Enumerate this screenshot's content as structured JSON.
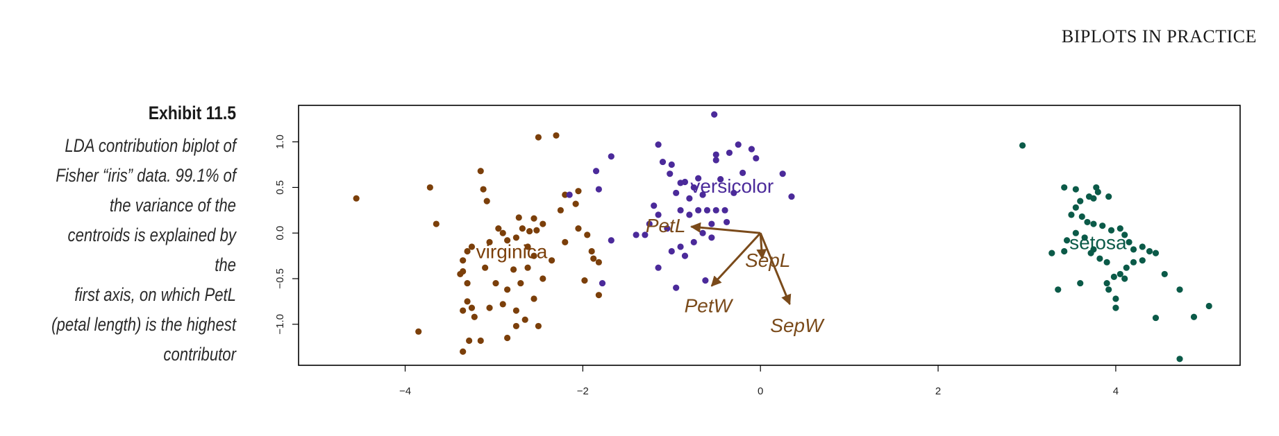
{
  "header": {
    "running_head": "BIPLOTS IN PRACTICE"
  },
  "caption": {
    "title": "Exhibit 11.5",
    "text": "LDA contribution biplot of\nFisher “iris” data. 99.1% of\nthe variance of the\ncentroids is explained by the\nfirst axis, on which PetL\n(petal length) is the highest\ncontributor"
  },
  "chart_data": {
    "type": "scatter",
    "xlim": [
      -5.2,
      5.4
    ],
    "ylim": [
      -1.45,
      1.4
    ],
    "x_ticks": [
      -4,
      -2,
      0,
      2,
      4
    ],
    "y_ticks": [
      -1.0,
      -0.5,
      0.0,
      0.5,
      1.0
    ],
    "x_tick_labels": [
      "−4",
      "−2",
      "0",
      "2",
      "4"
    ],
    "y_tick_labels": [
      "−1.0",
      "−0.5",
      "0.0",
      "0.5",
      "1.0"
    ],
    "colors": {
      "virginica": "#7b3f0a",
      "versicolor": "#4b2a9a",
      "setosa": "#0b5a48",
      "arrows": "#7a4a1a"
    },
    "series": [
      {
        "name": "virginica",
        "points": [
          [
            -4.55,
            0.38
          ],
          [
            -3.72,
            0.5
          ],
          [
            -3.65,
            0.1
          ],
          [
            -3.15,
            0.68
          ],
          [
            -3.12,
            0.48
          ],
          [
            -3.08,
            0.35
          ],
          [
            -2.5,
            1.05
          ],
          [
            -2.3,
            1.07
          ],
          [
            -2.2,
            0.42
          ],
          [
            -2.08,
            0.32
          ],
          [
            -2.05,
            0.05
          ],
          [
            -2.25,
            0.25
          ],
          [
            -1.95,
            -0.02
          ],
          [
            -1.9,
            -0.2
          ],
          [
            -1.88,
            -0.28
          ],
          [
            -1.82,
            -0.32
          ],
          [
            -1.82,
            -0.68
          ],
          [
            -1.98,
            -0.52
          ],
          [
            -2.05,
            0.46
          ],
          [
            -2.55,
            0.16
          ],
          [
            -2.52,
            0.03
          ],
          [
            -2.45,
            0.1
          ],
          [
            -2.6,
            0.02
          ],
          [
            -2.72,
            0.17
          ],
          [
            -2.68,
            0.05
          ],
          [
            -2.75,
            -0.05
          ],
          [
            -2.85,
            -0.08
          ],
          [
            -2.9,
            -0.0
          ],
          [
            -2.95,
            0.05
          ],
          [
            -3.05,
            -0.1
          ],
          [
            -3.25,
            -0.15
          ],
          [
            -3.3,
            -0.2
          ],
          [
            -3.35,
            -0.3
          ],
          [
            -3.38,
            -0.45
          ],
          [
            -3.35,
            -0.42
          ],
          [
            -3.3,
            -0.55
          ],
          [
            -3.25,
            -0.82
          ],
          [
            -3.22,
            -0.92
          ],
          [
            -3.3,
            -0.75
          ],
          [
            -3.35,
            -0.85
          ],
          [
            -3.28,
            -1.18
          ],
          [
            -3.35,
            -1.3
          ],
          [
            -3.15,
            -1.18
          ],
          [
            -2.85,
            -1.15
          ],
          [
            -2.75,
            -1.02
          ],
          [
            -2.65,
            -0.95
          ],
          [
            -2.5,
            -1.02
          ],
          [
            -2.55,
            -0.72
          ],
          [
            -2.7,
            -0.55
          ],
          [
            -2.62,
            -0.38
          ],
          [
            -2.55,
            -0.25
          ],
          [
            -2.78,
            -0.4
          ],
          [
            -2.85,
            -0.62
          ],
          [
            -2.9,
            -0.78
          ],
          [
            -3.05,
            -0.82
          ],
          [
            -2.98,
            -0.55
          ],
          [
            -3.1,
            -0.38
          ],
          [
            -2.75,
            -0.85
          ],
          [
            -3.85,
            -1.08
          ],
          [
            -2.45,
            -0.5
          ],
          [
            -2.35,
            -0.3
          ],
          [
            -2.2,
            -0.1
          ],
          [
            -2.62,
            -0.15
          ]
        ]
      },
      {
        "name": "versicolor",
        "points": [
          [
            -0.52,
            1.3
          ],
          [
            -1.15,
            0.97
          ],
          [
            -1.1,
            0.78
          ],
          [
            -1.0,
            0.75
          ],
          [
            -1.02,
            0.65
          ],
          [
            -0.5,
            0.86
          ],
          [
            -0.5,
            0.8
          ],
          [
            -0.35,
            0.88
          ],
          [
            -0.25,
            0.97
          ],
          [
            -0.1,
            0.92
          ],
          [
            -0.05,
            0.82
          ],
          [
            0.25,
            0.65
          ],
          [
            0.35,
            0.4
          ],
          [
            -0.9,
            0.55
          ],
          [
            -0.75,
            0.5
          ],
          [
            -0.65,
            0.42
          ],
          [
            -0.8,
            0.38
          ],
          [
            -0.95,
            0.44
          ],
          [
            -1.2,
            0.3
          ],
          [
            -1.15,
            0.2
          ],
          [
            -1.25,
            0.1
          ],
          [
            -0.9,
            0.25
          ],
          [
            -0.8,
            0.2
          ],
          [
            -0.7,
            0.25
          ],
          [
            -0.6,
            0.25
          ],
          [
            -0.5,
            0.25
          ],
          [
            -0.4,
            0.25
          ],
          [
            -0.38,
            0.12
          ],
          [
            -0.55,
            0.1
          ],
          [
            -0.65,
            0.0
          ],
          [
            -0.55,
            -0.05
          ],
          [
            -0.75,
            -0.1
          ],
          [
            -0.9,
            -0.15
          ],
          [
            -1.0,
            -0.2
          ],
          [
            -0.85,
            -0.25
          ],
          [
            -1.3,
            -0.02
          ],
          [
            -1.4,
            -0.02
          ],
          [
            -1.15,
            -0.38
          ],
          [
            -0.95,
            -0.6
          ],
          [
            -0.62,
            -0.52
          ],
          [
            -1.78,
            -0.55
          ],
          [
            -1.68,
            -0.08
          ],
          [
            -1.82,
            0.48
          ],
          [
            -1.85,
            0.68
          ],
          [
            -2.15,
            0.42
          ],
          [
            -1.68,
            0.84
          ],
          [
            -0.85,
            0.56
          ],
          [
            -0.3,
            0.44
          ],
          [
            -0.2,
            0.66
          ],
          [
            -0.45,
            0.59
          ],
          [
            -1.05,
            0.05
          ],
          [
            -0.7,
            0.6
          ]
        ]
      },
      {
        "name": "setosa",
        "points": [
          [
            2.95,
            0.96
          ],
          [
            3.42,
            0.5
          ],
          [
            3.55,
            0.48
          ],
          [
            3.78,
            0.5
          ],
          [
            3.8,
            0.45
          ],
          [
            3.92,
            0.4
          ],
          [
            3.75,
            0.38
          ],
          [
            3.7,
            0.4
          ],
          [
            3.6,
            0.35
          ],
          [
            3.55,
            0.28
          ],
          [
            3.5,
            0.2
          ],
          [
            3.62,
            0.18
          ],
          [
            3.68,
            0.12
          ],
          [
            3.75,
            0.1
          ],
          [
            3.85,
            0.08
          ],
          [
            3.95,
            0.03
          ],
          [
            4.05,
            0.05
          ],
          [
            4.1,
            -0.02
          ],
          [
            4.15,
            -0.1
          ],
          [
            4.2,
            -0.18
          ],
          [
            4.3,
            -0.15
          ],
          [
            4.38,
            -0.2
          ],
          [
            4.45,
            -0.22
          ],
          [
            4.3,
            -0.3
          ],
          [
            4.2,
            -0.32
          ],
          [
            4.12,
            -0.38
          ],
          [
            4.05,
            -0.45
          ],
          [
            3.98,
            -0.48
          ],
          [
            3.9,
            -0.32
          ],
          [
            3.82,
            -0.28
          ],
          [
            3.75,
            -0.18
          ],
          [
            3.72,
            -0.22
          ],
          [
            3.65,
            -0.05
          ],
          [
            3.55,
            0.0
          ],
          [
            3.45,
            -0.08
          ],
          [
            3.42,
            -0.2
          ],
          [
            3.28,
            -0.22
          ],
          [
            3.35,
            -0.62
          ],
          [
            3.6,
            -0.55
          ],
          [
            3.92,
            -0.62
          ],
          [
            4.0,
            -0.72
          ],
          [
            4.1,
            -0.5
          ],
          [
            4.55,
            -0.45
          ],
          [
            4.72,
            -0.62
          ],
          [
            4.88,
            -0.92
          ],
          [
            5.05,
            -0.8
          ],
          [
            4.72,
            -1.38
          ],
          [
            4.45,
            -0.93
          ],
          [
            4.0,
            -0.82
          ],
          [
            3.9,
            -0.55
          ]
        ]
      }
    ],
    "group_labels": [
      {
        "text": "virginica",
        "x": -2.8,
        "y": -0.2
      },
      {
        "text": "versicolor",
        "x": -0.32,
        "y": 0.52
      },
      {
        "text": "setosa",
        "x": 3.8,
        "y": -0.1
      }
    ],
    "arrows": [
      {
        "name": "PetL",
        "x": -0.78,
        "y": 0.07
      },
      {
        "name": "PetW",
        "x": -0.55,
        "y": -0.58
      },
      {
        "name": "SepL",
        "x": 0.02,
        "y": -0.28
      },
      {
        "name": "SepW",
        "x": 0.33,
        "y": -0.78
      }
    ]
  }
}
